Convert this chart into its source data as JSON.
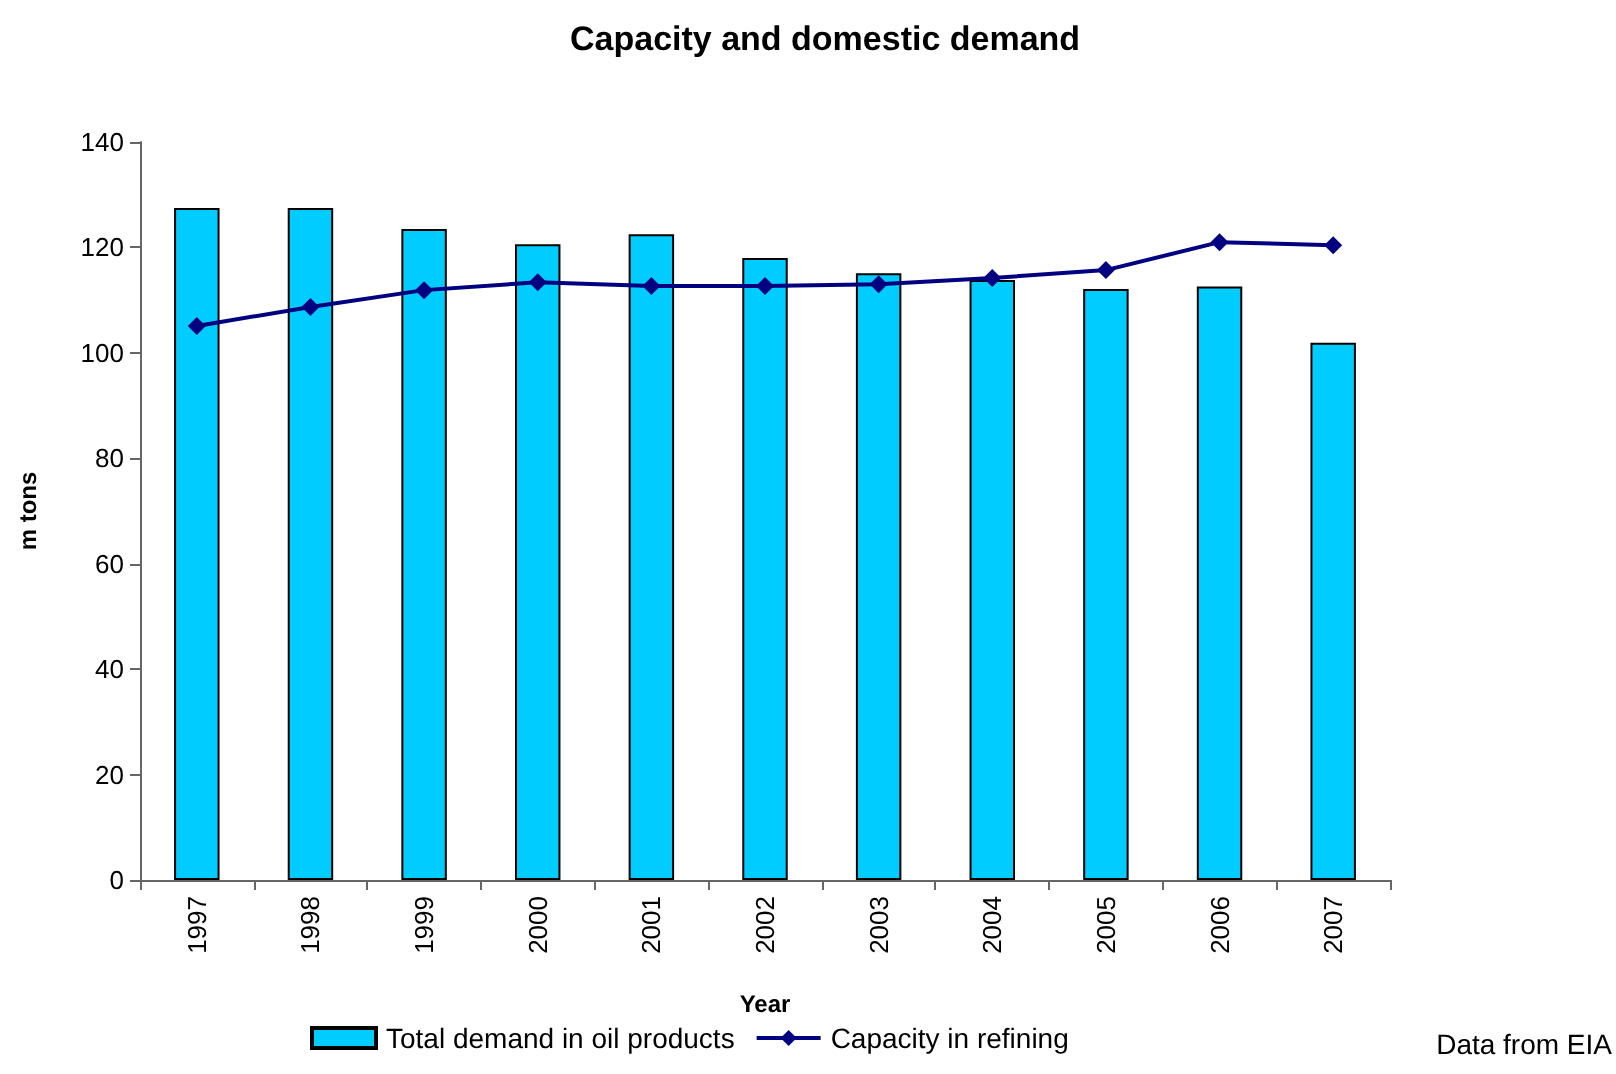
{
  "chart_data": {
    "type": "bar",
    "title": "Capacity and domestic demand",
    "xlabel": "Year",
    "ylabel": "m tons",
    "categories": [
      "1997",
      "1998",
      "1999",
      "2000",
      "2001",
      "2002",
      "2003",
      "2004",
      "2005",
      "2006",
      "2007"
    ],
    "series": [
      {
        "name": "Total demand in oil products",
        "color": "#00ccff",
        "values": [
          127.5,
          127.5,
          123.5,
          120.6,
          122.5,
          118,
          115.1,
          113.8,
          112.1,
          112.6,
          101.9
        ]
      },
      {
        "name": "Capacity in refining",
        "type": "line",
        "color": "#000080",
        "marker": "diamond",
        "values": [
          105.1,
          108.7,
          111.9,
          113.4,
          112.7,
          112.7,
          113,
          114.2,
          115.7,
          121,
          120.4
        ]
      }
    ],
    "ylim": [
      0,
      140
    ],
    "yticks": [
      0,
      20,
      40,
      60,
      80,
      100,
      120,
      140
    ],
    "grid": false,
    "legend": "bottom",
    "annotations": [
      "Data from EIA"
    ]
  }
}
